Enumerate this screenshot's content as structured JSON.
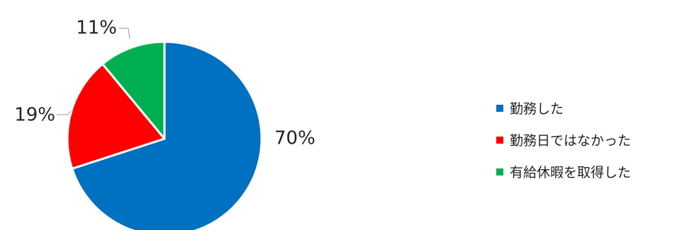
{
  "chart_data": {
    "type": "pie",
    "categories": [
      "勤務した",
      "勤務日ではなかった",
      "有給休暇を取得した"
    ],
    "values": [
      70,
      19,
      11
    ],
    "data_labels": [
      "70%",
      "19%",
      "11%"
    ],
    "colors": [
      "#0070C0",
      "#FF0000",
      "#00B050"
    ],
    "legend_position": "right"
  }
}
